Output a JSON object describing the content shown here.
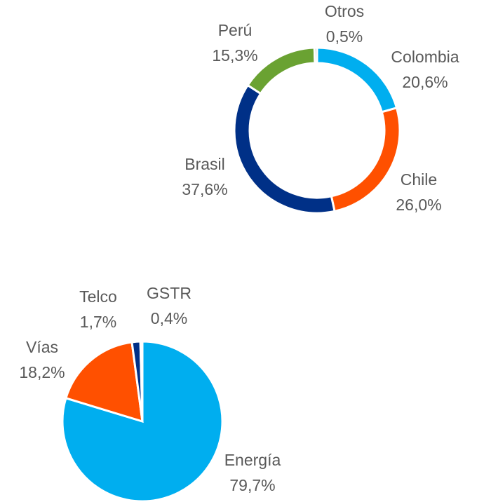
{
  "chart_data": [
    {
      "type": "donut",
      "categories": [
        "Colombia",
        "Chile",
        "Brasil",
        "Perú",
        "Otros"
      ],
      "values": [
        20.6,
        26.0,
        37.6,
        15.3,
        0.5
      ],
      "value_labels": [
        "20,6%",
        "26,0%",
        "37,6%",
        "15,3%",
        "0,5%"
      ],
      "colors": [
        "#00aeef",
        "#ff5000",
        "#003087",
        "#6aa232",
        "#a6a6a6"
      ]
    },
    {
      "type": "pie",
      "categories": [
        "Energía",
        "Vías",
        "Telco",
        "GSTR"
      ],
      "values": [
        79.7,
        18.2,
        1.7,
        0.4
      ],
      "value_labels": [
        "79,7%",
        "18,2%",
        "1,7%",
        "0,4%"
      ],
      "colors": [
        "#00aeef",
        "#ff5000",
        "#003087",
        "#a6a6a6"
      ]
    }
  ]
}
